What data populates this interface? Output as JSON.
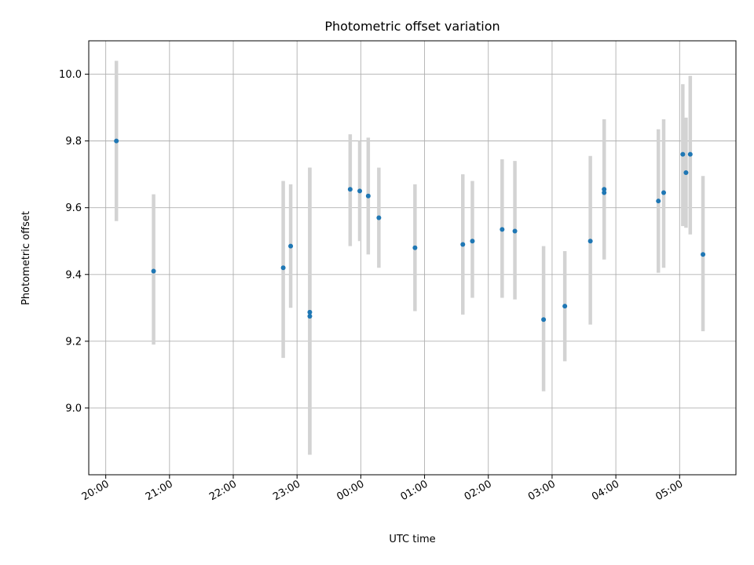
{
  "chart_data": {
    "type": "scatter",
    "title": "Photometric offset variation",
    "xlabel": "UTC time",
    "ylabel": "Photometric offset",
    "x_unit": "time of day (UTC), spanning midnight",
    "xlim": [
      "19:44",
      "05:53"
    ],
    "ylim": [
      8.8,
      10.1
    ],
    "grid": true,
    "x_ticks": [
      "20:00",
      "21:00",
      "22:00",
      "23:00",
      "00:00",
      "01:00",
      "02:00",
      "03:00",
      "04:00",
      "05:00"
    ],
    "y_ticks": [
      9.0,
      9.2,
      9.4,
      9.6,
      9.8,
      10.0
    ],
    "y_tick_labels": [
      "9.0",
      "9.2",
      "9.4",
      "9.6",
      "9.8",
      "10.0"
    ],
    "colors": {
      "point": "#1f77b4",
      "errorbar": "#d3d3d3",
      "grid": "#b0b0b0"
    },
    "series": [
      {
        "points": [
          {
            "x": "20:10",
            "y": 9.8,
            "yerr_low": 9.56,
            "yerr_high": 10.04
          },
          {
            "x": "20:45",
            "y": 9.41,
            "yerr_low": 9.19,
            "yerr_high": 9.64
          },
          {
            "x": "22:47",
            "y": 9.42,
            "yerr_low": 9.15,
            "yerr_high": 9.68
          },
          {
            "x": "22:54",
            "y": 9.485,
            "yerr_low": 9.3,
            "yerr_high": 9.67
          },
          {
            "x": "23:12",
            "y": 9.275,
            "yerr_low": 8.86,
            "yerr_high": 9.72
          },
          {
            "x": "23:12",
            "y": 9.287,
            "yerr_low": 8.86,
            "yerr_high": 9.72
          },
          {
            "x": "23:50",
            "y": 9.655,
            "yerr_low": 9.485,
            "yerr_high": 9.82
          },
          {
            "x": "23:59",
            "y": 9.65,
            "yerr_low": 9.5,
            "yerr_high": 9.8
          },
          {
            "x": "00:07",
            "y": 9.635,
            "yerr_low": 9.46,
            "yerr_high": 9.81
          },
          {
            "x": "00:17",
            "y": 9.57,
            "yerr_low": 9.42,
            "yerr_high": 9.72
          },
          {
            "x": "00:51",
            "y": 9.48,
            "yerr_low": 9.29,
            "yerr_high": 9.67
          },
          {
            "x": "01:36",
            "y": 9.49,
            "yerr_low": 9.28,
            "yerr_high": 9.7
          },
          {
            "x": "01:45",
            "y": 9.5,
            "yerr_low": 9.33,
            "yerr_high": 9.68
          },
          {
            "x": "02:13",
            "y": 9.535,
            "yerr_low": 9.33,
            "yerr_high": 9.745
          },
          {
            "x": "02:25",
            "y": 9.53,
            "yerr_low": 9.325,
            "yerr_high": 9.74
          },
          {
            "x": "02:52",
            "y": 9.265,
            "yerr_low": 9.05,
            "yerr_high": 9.485
          },
          {
            "x": "03:12",
            "y": 9.305,
            "yerr_low": 9.14,
            "yerr_high": 9.47
          },
          {
            "x": "03:36",
            "y": 9.5,
            "yerr_low": 9.25,
            "yerr_high": 9.755
          },
          {
            "x": "03:49",
            "y": 9.645,
            "yerr_low": 9.445,
            "yerr_high": 9.865
          },
          {
            "x": "03:49",
            "y": 9.655,
            "yerr_low": 9.445,
            "yerr_high": 9.865
          },
          {
            "x": "04:40",
            "y": 9.62,
            "yerr_low": 9.405,
            "yerr_high": 9.835
          },
          {
            "x": "04:45",
            "y": 9.645,
            "yerr_low": 9.42,
            "yerr_high": 9.865
          },
          {
            "x": "05:03",
            "y": 9.76,
            "yerr_low": 9.545,
            "yerr_high": 9.97
          },
          {
            "x": "05:06",
            "y": 9.705,
            "yerr_low": 9.54,
            "yerr_high": 9.87
          },
          {
            "x": "05:10",
            "y": 9.76,
            "yerr_low": 9.52,
            "yerr_high": 9.995
          },
          {
            "x": "05:22",
            "y": 9.46,
            "yerr_low": 9.23,
            "yerr_high": 9.695
          }
        ]
      }
    ]
  }
}
